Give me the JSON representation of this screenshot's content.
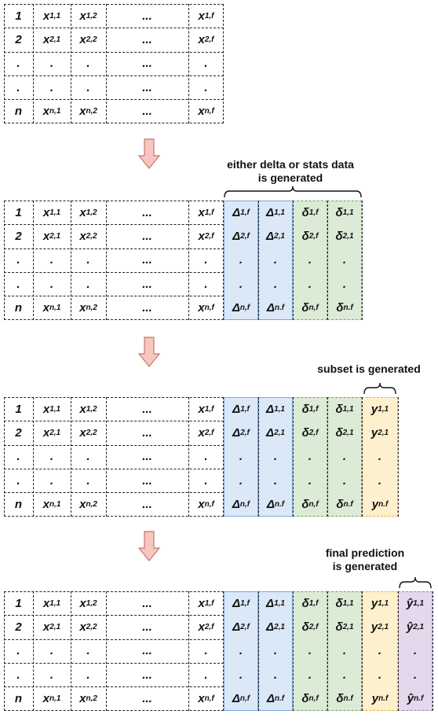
{
  "row_labels": [
    "1",
    "2",
    ".",
    ".",
    "n"
  ],
  "x_cols": [
    [
      "x1,1",
      "x2,1",
      ".",
      ".",
      "xn,1"
    ],
    [
      "x1,2",
      "x2,2",
      ".",
      ".",
      "xn,2"
    ],
    [
      "...",
      "...",
      "...",
      "...",
      "..."
    ],
    [
      "x1,f",
      "x2,f",
      ".",
      ".",
      "xn,f"
    ]
  ],
  "delta_cols": [
    [
      "Δ1,f",
      "Δ2,f",
      ".",
      ".",
      "Δn,f"
    ],
    [
      "Δ1,1",
      "Δ2,1",
      ".",
      ".",
      "Δn.f"
    ]
  ],
  "stats_cols": [
    [
      "δ1,f",
      "δ2,f",
      ".",
      ".",
      "δn,f"
    ],
    [
      "δ1,1",
      "δ2,1",
      ".",
      ".",
      "δn.f"
    ]
  ],
  "subset_col": [
    "y1,1",
    "y2,1",
    ".",
    ".",
    "yn.f"
  ],
  "subset_col_last": [
    "y1,1",
    "y2,1",
    ".",
    ".",
    "yn.f"
  ],
  "pred_col": [
    "ŷ1,1",
    "ŷ2,1",
    ".",
    ".",
    "ŷn.f"
  ],
  "labels": {
    "delta_stats": "either delta or stats data\nis generated",
    "subset": "subset is generated",
    "final": "final prediction\nis generated"
  },
  "colors": {
    "delta_band": "#dbe8f7",
    "stats_band": "#dcebd5",
    "subset_band": "#fdf0cc",
    "prediction_band": "#e3d8ec",
    "arrow_fill": "#f7c6c0",
    "arrow_stroke": "#c8766e"
  }
}
